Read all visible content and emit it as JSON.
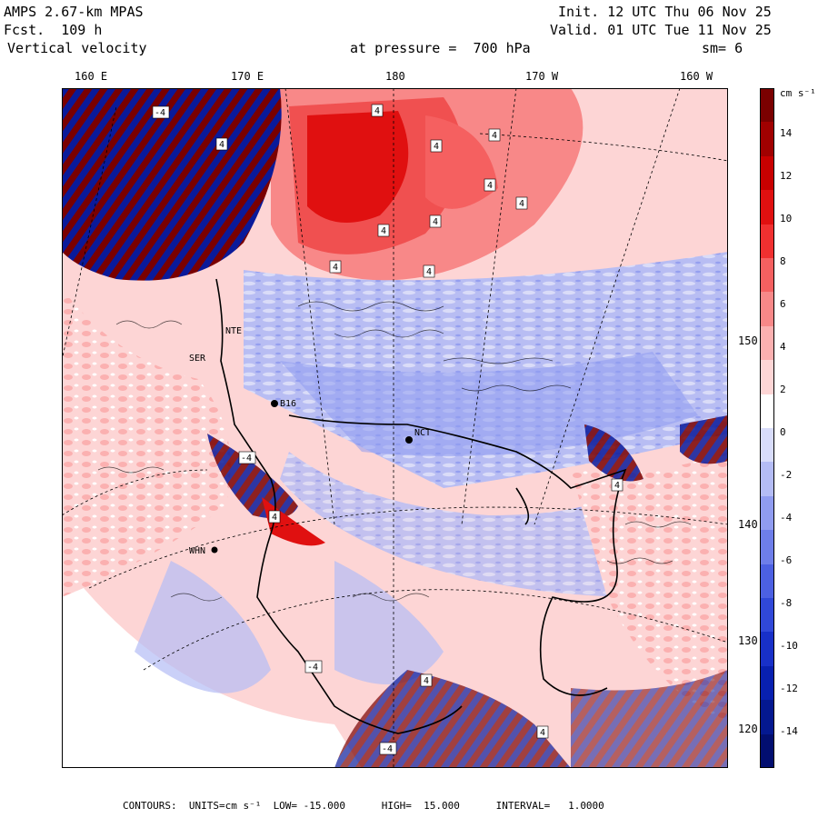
{
  "header": {
    "model": "AMPS 2.67-km MPAS",
    "fcst": "Fcst.  109 h",
    "field": "Vertical velocity",
    "init": "Init. 12 UTC Thu 06 Nov 25",
    "valid": "Valid. 01 UTC Tue 11 Nov 25",
    "level": "at pressure =  700 hPa",
    "smooth": "sm= 6"
  },
  "axes": {
    "top_labels": [
      "160 E",
      "170 E",
      "180",
      "170 W",
      "160 W"
    ],
    "right_labels": [
      "150 W",
      "140 W",
      "130 W",
      "120 W"
    ]
  },
  "stations": [
    "B16",
    "NCT",
    "WHN",
    "SER",
    "NTE"
  ],
  "colorbar": {
    "units": "cm s⁻¹",
    "labels": [
      "14",
      "12",
      "10",
      "8",
      "6",
      "4",
      "2",
      "0",
      "-2",
      "-4",
      "-6",
      "-8",
      "-10",
      "-12",
      "-14"
    ],
    "colors": [
      "#7a0000",
      "#a00000",
      "#c80000",
      "#e01010",
      "#f03030",
      "#f56060",
      "#f88888",
      "#fbb0b0",
      "#fdd5d5",
      "#ffffff",
      "#d8dcfa",
      "#b4bcf5",
      "#909cf0",
      "#6e7eea",
      "#4c60e2",
      "#3048d8",
      "#1830c8",
      "#0820b0",
      "#041890",
      "#020e70"
    ]
  },
  "footer": "CONTOURS:  UNITS=cm s⁻¹  LOW= -15.000      HIGH=  15.000      INTERVAL=   1.0000"
}
